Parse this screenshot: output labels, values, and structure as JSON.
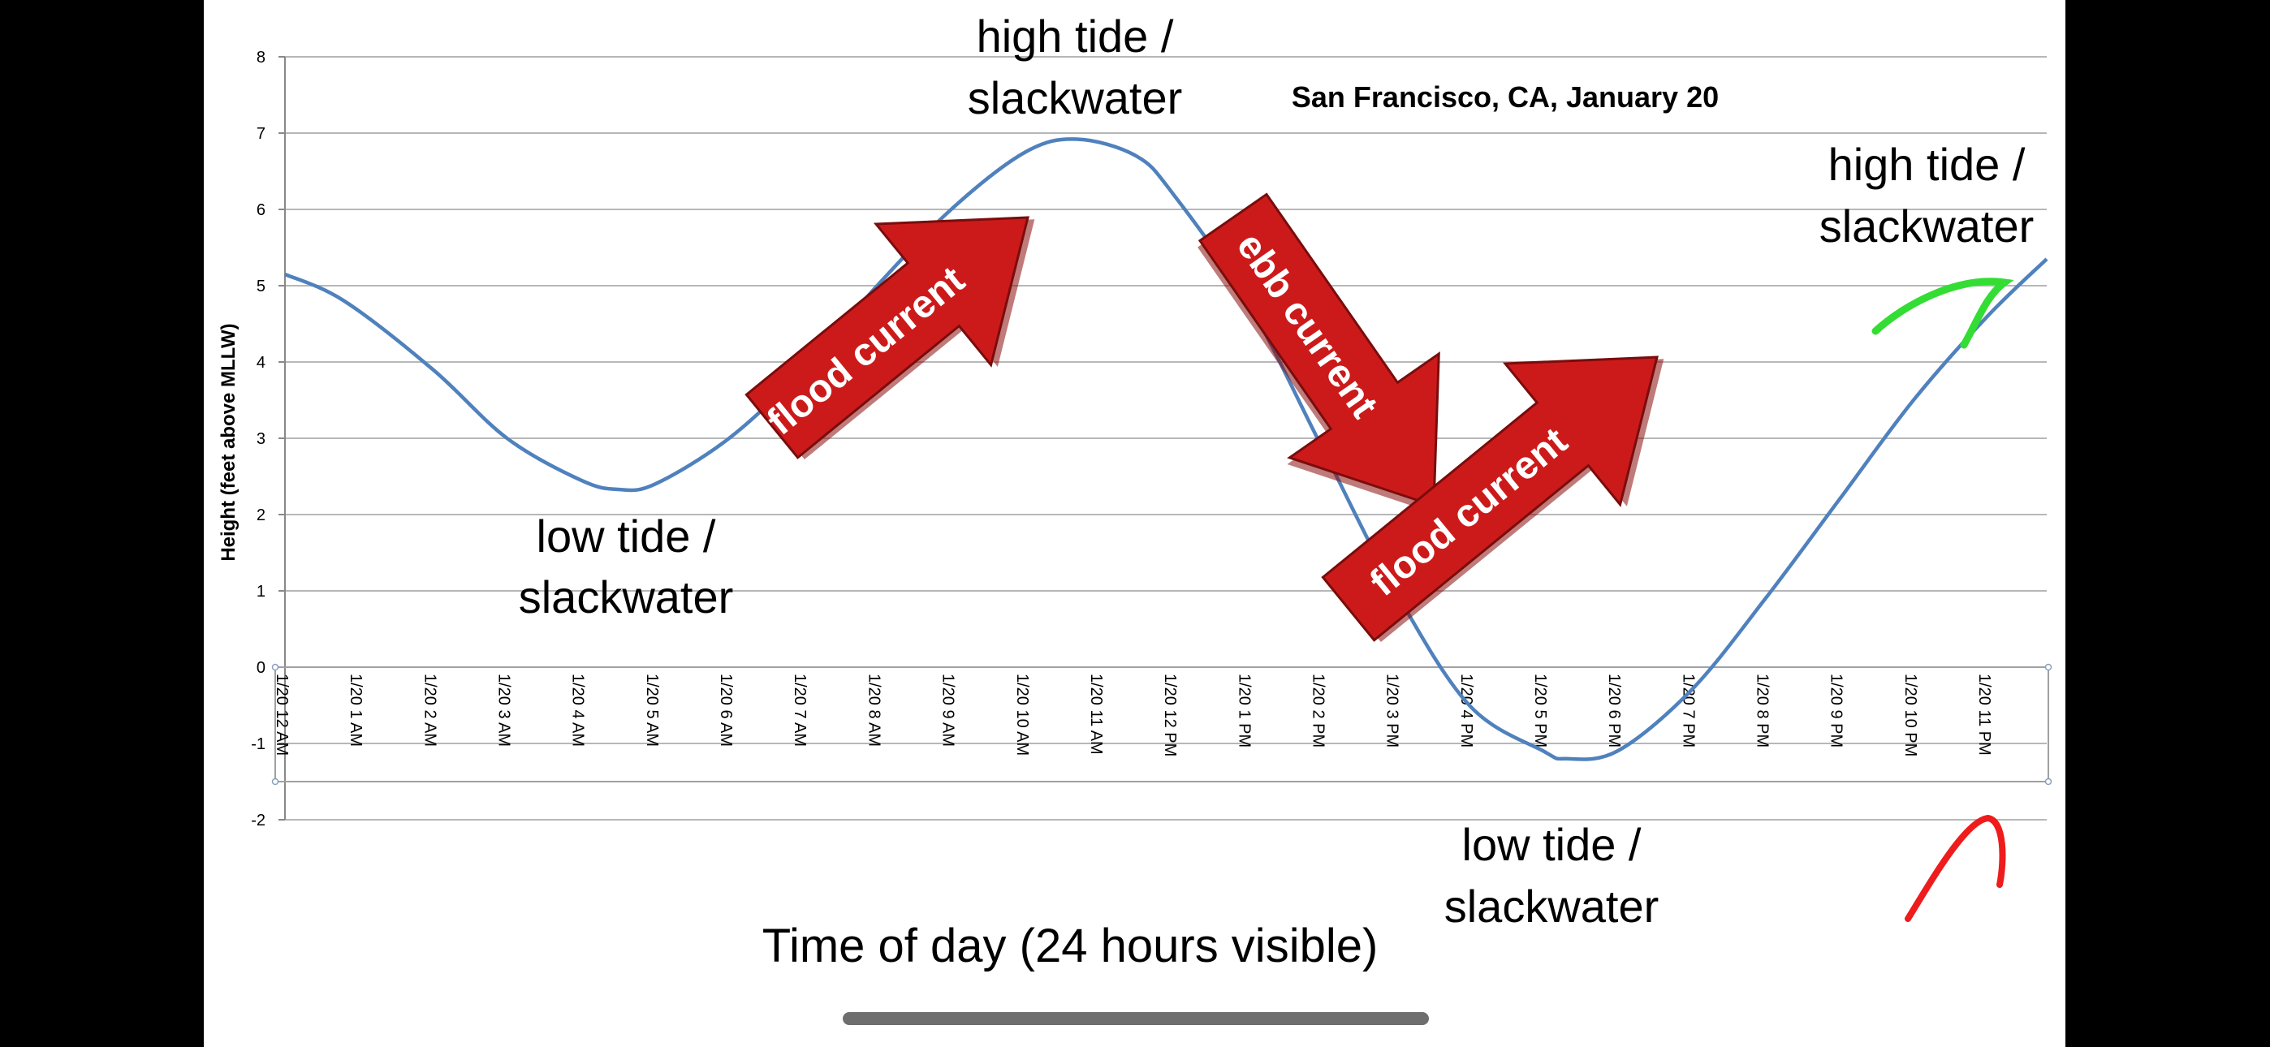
{
  "chart_data": {
    "type": "line",
    "title": "San Francisco, CA, January 20",
    "ylabel": "Height (feet above MLLW)",
    "xlabel": "Time of day (24 hours visible)",
    "ylim": [
      -2,
      8
    ],
    "grid": true,
    "yticks": [
      -2,
      -1,
      0,
      1,
      2,
      3,
      4,
      5,
      6,
      7,
      8
    ],
    "categories": [
      "1/20 12 AM",
      "1/20 1 AM",
      "1/20 2 AM",
      "1/20 3 AM",
      "1/20 4 AM",
      "1/20 5 AM",
      "1/20 6 AM",
      "1/20 7 AM",
      "1/20 8 AM",
      "1/20 9 AM",
      "1/20 10 AM",
      "1/20 11 AM",
      "1/20 12 PM",
      "1/20 1 PM",
      "1/20 2 PM",
      "1/20 3 PM",
      "1/20 4 PM",
      "1/20 5 PM",
      "1/20 6 PM",
      "1/20 7 PM",
      "1/20 8 PM",
      "1/20 9 PM",
      "1/20 10 PM",
      "1/20 11 PM"
    ],
    "x": [
      0,
      0.8,
      2,
      3,
      4,
      4.5,
      5,
      6,
      7,
      8,
      9,
      10,
      10.7,
      11.5,
      12,
      13,
      14,
      15,
      16,
      17,
      17.3,
      18,
      19,
      20,
      21,
      22,
      23,
      23.8
    ],
    "values": [
      5.15,
      4.8,
      3.9,
      3.0,
      2.45,
      2.33,
      2.4,
      3.0,
      3.9,
      5.0,
      6.0,
      6.75,
      6.92,
      6.7,
      6.2,
      4.8,
      2.9,
      1.0,
      -0.5,
      -1.1,
      -1.2,
      -1.1,
      -0.3,
      0.9,
      2.2,
      3.5,
      4.6,
      5.35
    ],
    "annotations": [
      {
        "text": "high tide / slackwater"
      },
      {
        "text": "low tide / slackwater"
      },
      {
        "text": "high tide / slackwater"
      },
      {
        "text": "low tide / slackwater"
      },
      {
        "text": "flood current"
      },
      {
        "text": "ebb current"
      },
      {
        "text": "flood current"
      }
    ],
    "colors": {
      "line": "#4f81bd",
      "arrow": "#cc1a1a",
      "green_stroke": "#33dd33",
      "red_stroke": "#ee1c1c"
    }
  }
}
